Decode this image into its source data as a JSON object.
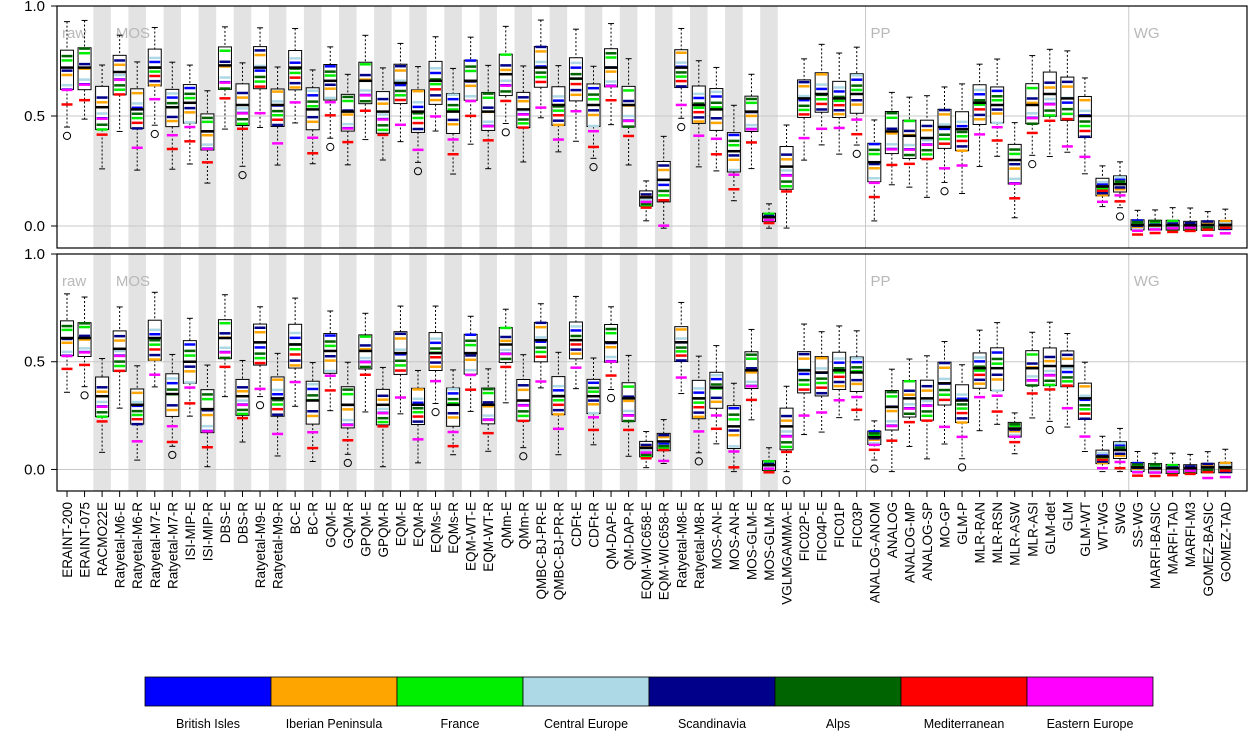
{
  "chart_data": {
    "type": "boxplot",
    "categories": [
      "ERAINT-200",
      "ERAINT-075",
      "RACMO22E",
      "Ratyetal-M6-E",
      "Ratyetal-M6-R",
      "Ratyetal-M7-E",
      "Ratyetal-M7-R",
      "ISI-MIP-E",
      "ISI-MIP-R",
      "DBS-E",
      "DBS-R",
      "Ratyetal-M9-E",
      "Ratyetal-M9-R",
      "BC-E",
      "BC-R",
      "GQM-E",
      "GQM-R",
      "GPQM-E",
      "GPQM-R",
      "EQM-E",
      "EQM-R",
      "EQMs-E",
      "EQMs-R",
      "EQM-WT-E",
      "EQM-WT-R",
      "QMm-E",
      "QMm-R",
      "QMBC-BJ-PR-E",
      "QMBC-BJ-PR-R",
      "CDFt-E",
      "CDFt-R",
      "QM-DAP-E",
      "QM-DAP-R",
      "EQM-WIC658-E",
      "EQM-WIC658-R",
      "Ratyetal-M8-E",
      "Ratyetal-M8-R",
      "MOS-AN-E",
      "MOS-AN-R",
      "MOS-GLM-E",
      "MOS-GLM-R",
      "VGLMGAMMA-E",
      "FIC02P-E",
      "FIC04P-E",
      "FIC01P",
      "FIC03P",
      "ANALOG-ANOM",
      "ANALOG",
      "ANALOG-MP",
      "ANALOG-SP",
      "MO-GP",
      "GLM-P",
      "MLR-RAN",
      "MLR-RSN",
      "MLR-ASW",
      "MLR-ASI",
      "GLM-det",
      "GLM",
      "GLM-WT",
      "WT-WG",
      "SWG",
      "SS-WG",
      "MARFI-BASIC",
      "MARFI-TAD",
      "MARFI-M3",
      "GOMEZ-BASIC",
      "GOMEZ-TAD"
    ],
    "shaded_categories": [
      "RACMO22E",
      "Ratyetal-M6-R",
      "Ratyetal-M7-R",
      "ISI-MIP-R",
      "DBS-R",
      "Ratyetal-M9-R",
      "BC-R",
      "GQM-R",
      "GPQM-R",
      "EQM-R",
      "EQMs-R",
      "EQM-WT-R",
      "QMm-R",
      "QMBC-BJ-PR-R",
      "CDFt-R",
      "QM-DAP-R",
      "EQM-WIC658-R",
      "Ratyetal-M8-R",
      "MOS-AN-R",
      "MOS-GLM-R"
    ],
    "groups": [
      {
        "label": "raw",
        "start": "ERAINT-200"
      },
      {
        "label": "MOS",
        "start": "Ratyetal-M6-E"
      },
      {
        "label": "PP",
        "start": "ANALOG-ANOM"
      },
      {
        "label": "WG",
        "start": "SS-WG"
      }
    ],
    "ylim": [
      -0.1,
      1.0
    ],
    "yticks": [
      "0.0",
      "0.5",
      "1.0"
    ],
    "panels": [
      {
        "medians": [
          0.72,
          0.72,
          0.54,
          0.7,
          0.53,
          0.72,
          0.54,
          0.56,
          0.43,
          0.73,
          0.55,
          0.72,
          0.55,
          0.72,
          0.53,
          0.66,
          0.52,
          0.66,
          0.52,
          0.65,
          0.52,
          0.66,
          0.52,
          0.66,
          0.52,
          0.69,
          0.53,
          0.72,
          0.55,
          0.67,
          0.55,
          0.72,
          0.55,
          0.13,
          0.21,
          0.72,
          0.55,
          0.53,
          0.34,
          0.52,
          0.04,
          0.27,
          0.58,
          0.6,
          0.58,
          0.6,
          0.29,
          0.43,
          0.41,
          0.4,
          0.45,
          0.44,
          0.56,
          0.55,
          0.3,
          0.55,
          0.6,
          0.58,
          0.5,
          0.18,
          0.19,
          0.005,
          0.003,
          0.003,
          0.003,
          0.005,
          0.005
        ]
      },
      {
        "medians": [
          0.61,
          0.61,
          0.34,
          0.56,
          0.3,
          0.61,
          0.35,
          0.5,
          0.28,
          0.61,
          0.34,
          0.59,
          0.33,
          0.58,
          0.32,
          0.55,
          0.3,
          0.55,
          0.3,
          0.54,
          0.3,
          0.54,
          0.3,
          0.54,
          0.3,
          0.58,
          0.32,
          0.6,
          0.34,
          0.6,
          0.34,
          0.59,
          0.33,
          0.1,
          0.13,
          0.59,
          0.33,
          0.38,
          0.2,
          0.46,
          0.02,
          0.2,
          0.46,
          0.45,
          0.46,
          0.45,
          0.15,
          0.29,
          0.33,
          0.33,
          0.4,
          0.32,
          0.47,
          0.47,
          0.19,
          0.47,
          0.48,
          0.48,
          0.33,
          0.06,
          0.09,
          0.01,
          0.005,
          0.005,
          0.005,
          0.01,
          0.01
        ]
      }
    ],
    "legend": [
      {
        "name": "British Isles",
        "color": "#0000ff"
      },
      {
        "name": "Iberian Peninsula",
        "color": "#ffa500"
      },
      {
        "name": "France",
        "color": "#00ee00"
      },
      {
        "name": "Central Europe",
        "color": "#add8e6"
      },
      {
        "name": "Scandinavia",
        "color": "#00008b"
      },
      {
        "name": "Alps",
        "color": "#006400"
      },
      {
        "name": "Mediterranean",
        "color": "#ff0000"
      },
      {
        "name": "Eastern Europe",
        "color": "#ff00ff"
      }
    ]
  }
}
